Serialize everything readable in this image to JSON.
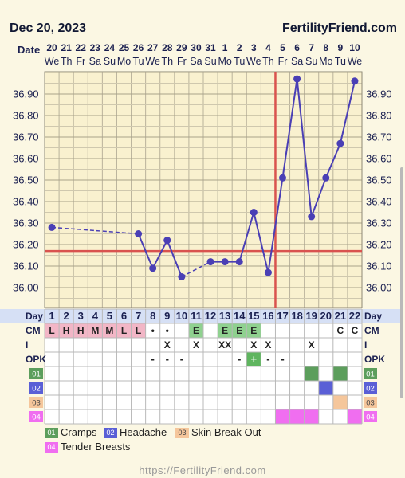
{
  "header": {
    "date": "Dec 20, 2023",
    "site": "FertilityFriend.com"
  },
  "footer": {
    "url": "https://FertilityFriend.com"
  },
  "labels": {
    "date": "Date",
    "day": "Day",
    "cm": "CM",
    "i": "I",
    "opk": "OPK"
  },
  "chart_data": {
    "type": "line",
    "dates": [
      "20",
      "21",
      "22",
      "23",
      "24",
      "25",
      "26",
      "27",
      "28",
      "29",
      "30",
      "31",
      "1",
      "2",
      "3",
      "4",
      "5",
      "6",
      "7",
      "8",
      "9",
      "10"
    ],
    "weekdays": [
      "We",
      "Th",
      "Fr",
      "Sa",
      "Su",
      "Mo",
      "Tu",
      "We",
      "Th",
      "Fr",
      "Sa",
      "Su",
      "Mo",
      "Tu",
      "We",
      "Th",
      "Fr",
      "Sa",
      "Su",
      "Mo",
      "Tu",
      "We"
    ],
    "cycle_days": [
      "1",
      "2",
      "3",
      "4",
      "5",
      "6",
      "7",
      "8",
      "9",
      "10",
      "11",
      "12",
      "13",
      "14",
      "15",
      "16",
      "17",
      "18",
      "19",
      "20",
      "21",
      "22"
    ],
    "y_ticks": [
      "36.90",
      "36.80",
      "36.70",
      "36.60",
      "36.50",
      "36.40",
      "36.30",
      "36.20",
      "36.10",
      "36.00"
    ],
    "ylim": [
      35.95,
      37.0
    ],
    "temperatures": [
      36.28,
      null,
      null,
      null,
      null,
      null,
      36.25,
      36.09,
      36.22,
      36.05,
      null,
      36.12,
      36.12,
      36.12,
      36.35,
      36.07,
      36.51,
      36.97,
      36.33,
      36.51,
      36.67,
      36.96
    ],
    "coverline": 36.17,
    "ovulation_day": 16,
    "line_color": "#4a3fb5",
    "coverline_color": "#d9534f",
    "cm": [
      "L",
      "H",
      "H",
      "M",
      "M",
      "L",
      "L",
      "•",
      "•",
      "",
      "E",
      "",
      "E",
      "E",
      "E",
      "",
      "",
      "",
      "",
      "",
      "C",
      "C"
    ],
    "intercourse": [
      "",
      "",
      "",
      "",
      "",
      "",
      "",
      "",
      "X",
      "",
      "X",
      "",
      "XX",
      "",
      "X",
      "X",
      "",
      "",
      "X",
      "",
      "",
      ""
    ],
    "opk": [
      "",
      "",
      "",
      "",
      "",
      "",
      "",
      "-",
      "-",
      "-",
      "",
      "",
      "",
      "-",
      "+",
      "-",
      "-",
      "",
      "",
      "",
      "",
      ""
    ],
    "symptoms": [
      {
        "code": "01",
        "name": "Cramps",
        "color": "#5c9e5c",
        "days": [
          19,
          21
        ]
      },
      {
        "code": "02",
        "name": "Headache",
        "color": "#5a5fd6",
        "days": [
          20
        ]
      },
      {
        "code": "03",
        "name": "Skin Break Out",
        "color": "#f5c69b",
        "days": [
          21
        ]
      },
      {
        "code": "04",
        "name": "Tender Breasts",
        "color": "#f06ef0",
        "days": [
          17,
          18,
          19,
          22
        ]
      }
    ]
  }
}
